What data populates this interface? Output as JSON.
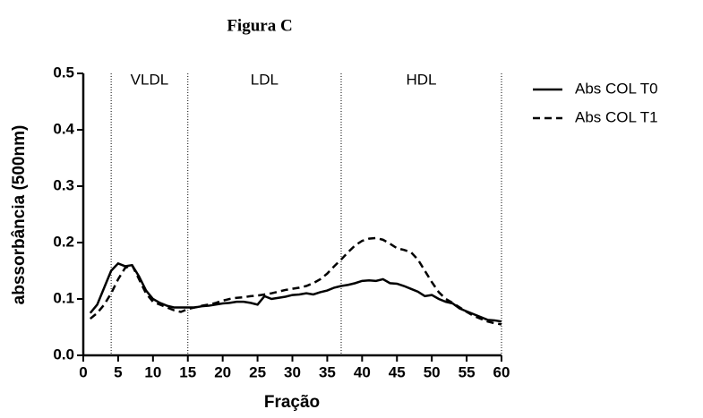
{
  "chart_data": {
    "type": "line",
    "title": "Figura C",
    "x_label": "Fração",
    "y_label": "abssorbância (500nm)",
    "x": [
      1,
      2,
      3,
      4,
      5,
      6,
      7,
      8,
      9,
      10,
      11,
      12,
      13,
      14,
      15,
      16,
      17,
      18,
      19,
      20,
      21,
      22,
      23,
      24,
      25,
      26,
      27,
      28,
      29,
      30,
      31,
      32,
      33,
      34,
      35,
      36,
      37,
      38,
      39,
      40,
      41,
      42,
      43,
      44,
      45,
      46,
      47,
      48,
      49,
      50,
      51,
      52,
      53,
      54,
      55,
      56,
      57,
      58,
      59,
      60
    ],
    "series": [
      {
        "name": "Abs COL T0",
        "color": "#000000",
        "style": "solid",
        "values": [
          0.075,
          0.09,
          0.12,
          0.15,
          0.163,
          0.158,
          0.16,
          0.14,
          0.115,
          0.1,
          0.093,
          0.088,
          0.085,
          0.085,
          0.085,
          0.085,
          0.087,
          0.088,
          0.09,
          0.092,
          0.093,
          0.095,
          0.095,
          0.093,
          0.09,
          0.105,
          0.1,
          0.102,
          0.104,
          0.107,
          0.108,
          0.11,
          0.108,
          0.112,
          0.115,
          0.12,
          0.123,
          0.125,
          0.128,
          0.132,
          0.133,
          0.132,
          0.135,
          0.128,
          0.127,
          0.123,
          0.118,
          0.113,
          0.105,
          0.107,
          0.1,
          0.095,
          0.092,
          0.083,
          0.078,
          0.073,
          0.068,
          0.063,
          0.062,
          0.06
        ]
      },
      {
        "name": "Abs COL T1",
        "color": "#000000",
        "style": "dashed",
        "values": [
          0.065,
          0.075,
          0.09,
          0.11,
          0.135,
          0.155,
          0.16,
          0.135,
          0.11,
          0.095,
          0.09,
          0.085,
          0.08,
          0.077,
          0.082,
          0.085,
          0.088,
          0.09,
          0.093,
          0.097,
          0.1,
          0.102,
          0.103,
          0.105,
          0.106,
          0.108,
          0.11,
          0.113,
          0.116,
          0.118,
          0.12,
          0.123,
          0.128,
          0.135,
          0.145,
          0.158,
          0.17,
          0.183,
          0.195,
          0.203,
          0.207,
          0.208,
          0.205,
          0.198,
          0.19,
          0.187,
          0.183,
          0.17,
          0.15,
          0.13,
          0.112,
          0.1,
          0.093,
          0.085,
          0.077,
          0.07,
          0.065,
          0.06,
          0.057,
          0.055
        ]
      }
    ],
    "dividers": [
      4,
      15,
      37,
      60
    ],
    "regions": [
      "VLDL",
      "LDL",
      "HDL"
    ],
    "xlim": [
      0,
      60
    ],
    "xticks": [
      0,
      5,
      10,
      15,
      20,
      25,
      30,
      35,
      40,
      45,
      50,
      55,
      60
    ],
    "ylim": [
      0,
      0.5
    ],
    "yticks": [
      {
        "value": 0,
        "label": "0.0"
      },
      0.1,
      0.2,
      0.3,
      0.4,
      0.5
    ],
    "legend": "right"
  }
}
